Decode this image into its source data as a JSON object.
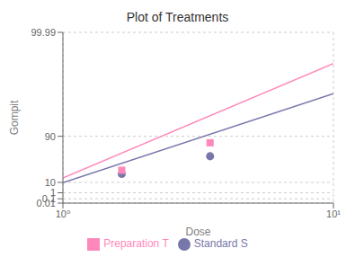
{
  "chart_data": {
    "type": "line",
    "title": "Plot of Treatments",
    "xlabel": "Dose",
    "ylabel": "Gompit",
    "log": "x",
    "grid": true,
    "legend": "bottom",
    "xlim": [
      1.0,
      10.0
    ],
    "xticks": [
      {
        "value": 1.0,
        "label": "10⁰"
      },
      {
        "value": 10.0,
        "label": "10¹"
      }
    ],
    "ylim": [
      0.01,
      99.99
    ],
    "yticks": [
      0.01,
      0.1,
      1,
      10,
      90,
      99.99
    ],
    "series": [
      {
        "name": "Standard S",
        "type": "scatter",
        "marker": "circle",
        "color": "#7777aa",
        "x": [
          1.65,
          3.5
        ],
        "values": [
          27.0,
          67.0
        ]
      },
      {
        "name": "Preparation T",
        "type": "scatter",
        "marker": "square",
        "color": "#ff88bb",
        "x": [
          1.65,
          3.5
        ],
        "values": [
          36.0,
          85.0
        ]
      },
      {
        "type": "line",
        "color": "#7777aa",
        "x": [
          1.0,
          10.0
        ],
        "values": [
          9.5,
          99.4
        ]
      },
      {
        "type": "line",
        "color": "#ff88bb",
        "x": [
          1.0,
          10.0
        ],
        "values": [
          18.0,
          99.92
        ]
      }
    ]
  }
}
